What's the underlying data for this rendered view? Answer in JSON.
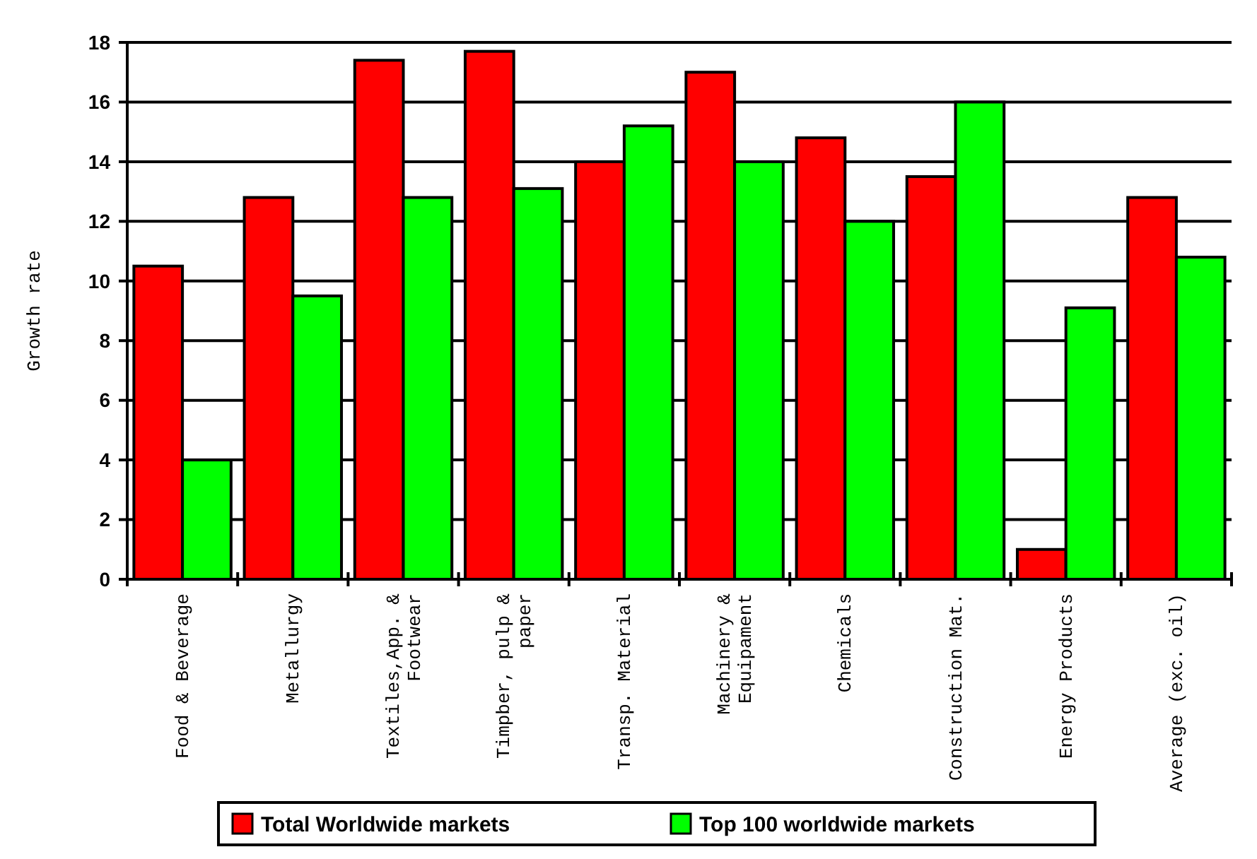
{
  "chart_data": {
    "type": "bar",
    "ylabel": "Growth rate",
    "categories": [
      "Food & Beverage",
      "Metallurgy",
      "Textiles,App. & Footwear",
      "Timpber, pulp & paper",
      "Transp. Material",
      "Machinery & Equipament",
      "Chemicals",
      "Construction Mat.",
      "Energy Products",
      "Average (exc. oil)"
    ],
    "series": [
      {
        "name": "Total Worldwide markets",
        "color": "#ff0000",
        "values": [
          10.5,
          12.8,
          17.4,
          17.7,
          14,
          17,
          14.8,
          13.5,
          1,
          12.8
        ]
      },
      {
        "name": "Top 100 worldwide markets",
        "color": "#00ff00",
        "values": [
          4,
          9.5,
          12.8,
          13.1,
          15.2,
          14,
          12,
          16,
          9.1,
          10.8
        ]
      }
    ],
    "ylim": [
      0,
      18
    ],
    "yticks": [
      0,
      2,
      4,
      6,
      8,
      10,
      12,
      14,
      16,
      18
    ],
    "grid": "y",
    "legend": "bottom"
  }
}
